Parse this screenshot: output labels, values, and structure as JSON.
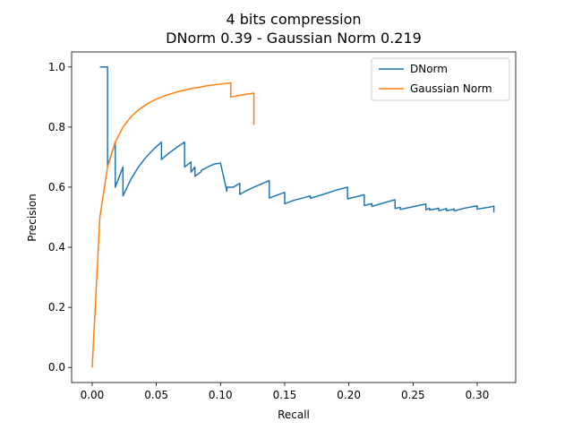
{
  "chart_data": {
    "type": "line",
    "title": "4 bits compression",
    "subtitle": "DNorm 0.39 - Gaussian Norm 0.219",
    "xlabel": "Recall",
    "ylabel": "Precision",
    "xlim": [
      -0.016,
      0.33
    ],
    "ylim": [
      -0.05,
      1.05
    ],
    "x_ticks": [
      "0.00",
      "0.05",
      "0.10",
      "0.15",
      "0.20",
      "0.25",
      "0.30"
    ],
    "y_ticks": [
      "0.0",
      "0.2",
      "0.4",
      "0.6",
      "0.8",
      "1.0"
    ],
    "grid": false,
    "legend_position": "top-right",
    "series": [
      {
        "name": "DNorm",
        "color": "#1f77b4",
        "x": [
          0.006,
          0.012,
          0.012,
          0.018,
          0.018,
          0.024,
          0.024,
          0.03,
          0.036,
          0.042,
          0.048,
          0.054,
          0.054,
          0.06,
          0.066,
          0.072,
          0.072,
          0.077,
          0.077,
          0.08,
          0.08,
          0.085,
          0.085,
          0.09,
          0.095,
          0.1,
          0.105,
          0.105,
          0.11,
          0.115,
          0.115,
          0.12,
          0.126,
          0.132,
          0.138,
          0.138,
          0.145,
          0.15,
          0.15,
          0.157,
          0.165,
          0.17,
          0.17,
          0.18,
          0.19,
          0.199,
          0.199,
          0.205,
          0.21,
          0.212,
          0.212,
          0.218,
          0.218,
          0.225,
          0.234,
          0.236,
          0.236,
          0.24,
          0.24,
          0.25,
          0.26,
          0.26,
          0.263,
          0.263,
          0.268,
          0.27,
          0.27,
          0.275,
          0.276,
          0.276,
          0.28,
          0.282,
          0.282,
          0.29,
          0.3,
          0.3,
          0.31,
          0.312,
          0.313,
          0.313
        ],
        "y": [
          1.0,
          1.0,
          0.67,
          0.75,
          0.6,
          0.667,
          0.571,
          0.625,
          0.667,
          0.7,
          0.727,
          0.75,
          0.692,
          0.714,
          0.733,
          0.75,
          0.667,
          0.684,
          0.65,
          0.667,
          0.636,
          0.652,
          0.656,
          0.667,
          0.677,
          0.68,
          0.586,
          0.6,
          0.6,
          0.613,
          0.576,
          0.588,
          0.6,
          0.611,
          0.622,
          0.564,
          0.575,
          0.583,
          0.545,
          0.556,
          0.565,
          0.571,
          0.563,
          0.576,
          0.59,
          0.6,
          0.561,
          0.567,
          0.573,
          0.575,
          0.539,
          0.545,
          0.536,
          0.545,
          0.556,
          0.558,
          0.529,
          0.533,
          0.526,
          0.535,
          0.544,
          0.525,
          0.53,
          0.524,
          0.528,
          0.53,
          0.522,
          0.527,
          0.53,
          0.522,
          0.525,
          0.528,
          0.521,
          0.53,
          0.538,
          0.527,
          0.534,
          0.536,
          0.537,
          0.516
        ]
      },
      {
        "name": "Gaussian Norm",
        "color": "#ff7f0e",
        "x": [
          0.0,
          0.006,
          0.012,
          0.018,
          0.024,
          0.03,
          0.036,
          0.042,
          0.048,
          0.054,
          0.06,
          0.066,
          0.072,
          0.078,
          0.084,
          0.09,
          0.096,
          0.102,
          0.108,
          0.108,
          0.114,
          0.12,
          0.126,
          0.126
        ],
        "y": [
          0.0,
          0.5,
          0.667,
          0.75,
          0.8,
          0.833,
          0.857,
          0.875,
          0.889,
          0.9,
          0.909,
          0.917,
          0.923,
          0.929,
          0.933,
          0.938,
          0.941,
          0.944,
          0.947,
          0.9,
          0.905,
          0.909,
          0.913,
          0.808
        ]
      }
    ]
  }
}
